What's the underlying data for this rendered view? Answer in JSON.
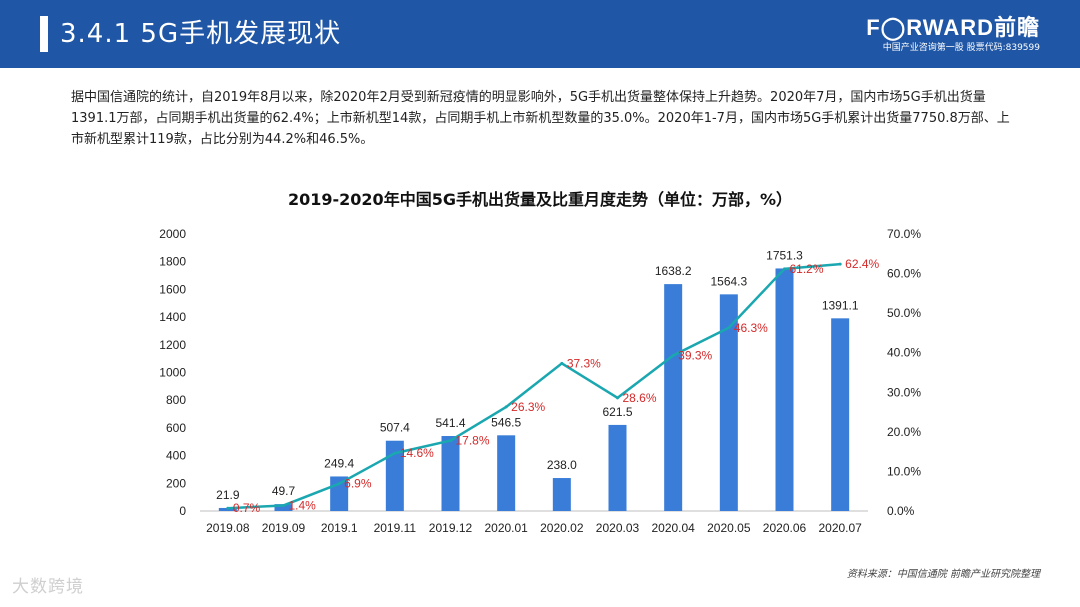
{
  "header": {
    "title": "3.4.1  5G手机发展现状",
    "brand": "F◯RWARD前瞻",
    "tagline": "中国产业咨询第一股 股票代码:839599"
  },
  "intro": "据中国信通院的统计，自2019年8月以来，除2020年2月受到新冠疫情的明显影响外，5G手机出货量整体保持上升趋势。2020年7月，国内市场5G手机出货量1391.1万部，占同期手机出货量的62.4%；上市新机型14款，占同期手机上市新机型数量的35.0%。2020年1-7月，国内市场5G手机累计出货量7750.8万部、上市新机型累计119款，占比分别为44.2%和46.5%。",
  "source": "资料来源：中国信通院 前瞻产业研究院整理",
  "watermark": "大数跨境",
  "colors": {
    "bar": "#3a7dd8",
    "line": "#1aa7b0",
    "pct_label": "#d42a2a",
    "header": "#1f56a5"
  },
  "chart_data": {
    "type": "bar+line",
    "title": "2019-2020年中国5G手机出货量及比重月度走势（单位：万部，%）",
    "categories": [
      "2019.08",
      "2019.09",
      "2019.1",
      "2019.11",
      "2019.12",
      "2020.01",
      "2020.02",
      "2020.03",
      "2020.04",
      "2020.05",
      "2020.06",
      "2020.07"
    ],
    "series": [
      {
        "name": "出货量",
        "type": "bar",
        "axis": "left",
        "values": [
          21.9,
          49.7,
          249.4,
          507.4,
          541.4,
          546.5,
          238.0,
          621.5,
          1638.2,
          1564.3,
          1751.3,
          1391.1
        ],
        "labels": [
          "21.9",
          "49.7",
          "249.4",
          "507.4",
          "541.4",
          "546.5",
          "238.0",
          "621.5",
          "1638.2",
          "1564.3",
          "1751.3",
          "1391.1"
        ]
      },
      {
        "name": "比重",
        "type": "line",
        "axis": "right",
        "values": [
          0.7,
          1.4,
          6.9,
          14.6,
          17.8,
          26.3,
          37.3,
          28.6,
          39.3,
          46.3,
          61.2,
          62.4
        ],
        "labels": [
          "0.7%",
          "1.4%",
          "6.9%",
          "14.6%",
          "17.8%",
          "26.3%",
          "37.3%",
          "28.6%",
          "39.3%",
          "46.3%",
          "61.2%",
          "62.4%"
        ]
      }
    ],
    "left_axis": {
      "min": 0,
      "max": 2000,
      "ticks": [
        "0",
        "200",
        "400",
        "600",
        "800",
        "1000",
        "1200",
        "1400",
        "1600",
        "1800",
        "2000"
      ]
    },
    "right_axis": {
      "min": 0,
      "max": 70,
      "ticks": [
        "0.0%",
        "10.0%",
        "20.0%",
        "30.0%",
        "40.0%",
        "50.0%",
        "60.0%",
        "70.0%"
      ]
    }
  }
}
